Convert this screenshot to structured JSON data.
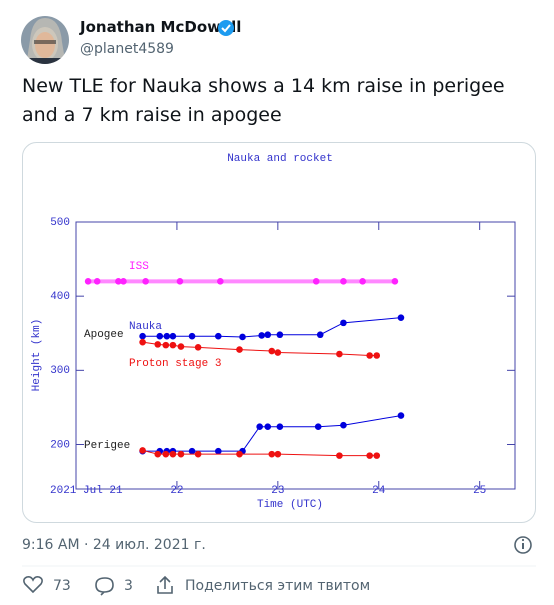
{
  "tweet": {
    "name": "Jonathan McDowell",
    "handle": "@planet4589",
    "text": "New TLE for Nauka shows a 14 km raise in perigee and a 7 km raise in apogee",
    "time": "9:16 AM · 24 июл. 2021 г.",
    "likes": 73,
    "retweets": 3,
    "share": "Поделиться этим твитом"
  },
  "chart_data": {
    "type": "line",
    "title": "Nauka and rocket",
    "x_label": "Time (UTC)",
    "y_label": "Height (km)",
    "annotations": [
      "ISS",
      "Nauka",
      "Apogee",
      "Proton stage 3",
      "Perigee"
    ],
    "xlim": [
      21,
      25.35
    ],
    "xticks": [
      {
        "value": 21,
        "label": "2021 Jul 21"
      },
      22,
      23,
      24,
      25
    ],
    "ylim": [
      140,
      500
    ],
    "yticks": [
      200,
      300,
      400,
      500
    ],
    "series": [
      {
        "color": "#ff22ff",
        "x": [
          21.12,
          21.21,
          21.42,
          21.47,
          21.69,
          22.03,
          22.43,
          23.38,
          23.65,
          23.84,
          24.16
        ],
        "values": [
          420,
          420,
          420,
          420,
          420,
          420,
          420,
          420,
          420,
          420,
          420
        ]
      },
      {
        "color": "#0000dd",
        "x": [
          21.66,
          21.83,
          21.9,
          21.96,
          22.15,
          22.41,
          22.65,
          22.84,
          22.9,
          23.02,
          23.42,
          23.65,
          24.22
        ],
        "values": [
          346,
          346,
          346,
          346,
          346,
          346,
          345,
          347,
          348,
          348,
          348,
          364,
          371
        ]
      },
      {
        "color": "#ee1111",
        "x": [
          21.66,
          21.81,
          21.89,
          21.96,
          22.04,
          22.21,
          22.62,
          22.94,
          23.0,
          23.61,
          23.91,
          23.98
        ],
        "values": [
          338,
          335,
          334,
          334,
          332,
          331,
          328,
          326,
          324,
          322,
          320,
          320
        ]
      },
      {
        "color": "#0000dd",
        "x": [
          21.66,
          21.83,
          21.9,
          21.96,
          22.15,
          22.41,
          22.65,
          22.82,
          22.9,
          23.02,
          23.4,
          23.65,
          24.22
        ],
        "values": [
          191,
          191,
          191,
          191,
          191,
          191,
          191,
          224,
          224,
          224,
          224,
          226,
          239
        ]
      },
      {
        "color": "#ee1111",
        "x": [
          21.66,
          21.81,
          21.89,
          21.96,
          22.04,
          22.21,
          22.62,
          22.94,
          23.0,
          23.61,
          23.91,
          23.98
        ],
        "values": [
          192,
          187,
          187,
          187,
          187,
          187,
          187,
          187,
          187,
          185,
          185,
          185
        ]
      }
    ]
  }
}
